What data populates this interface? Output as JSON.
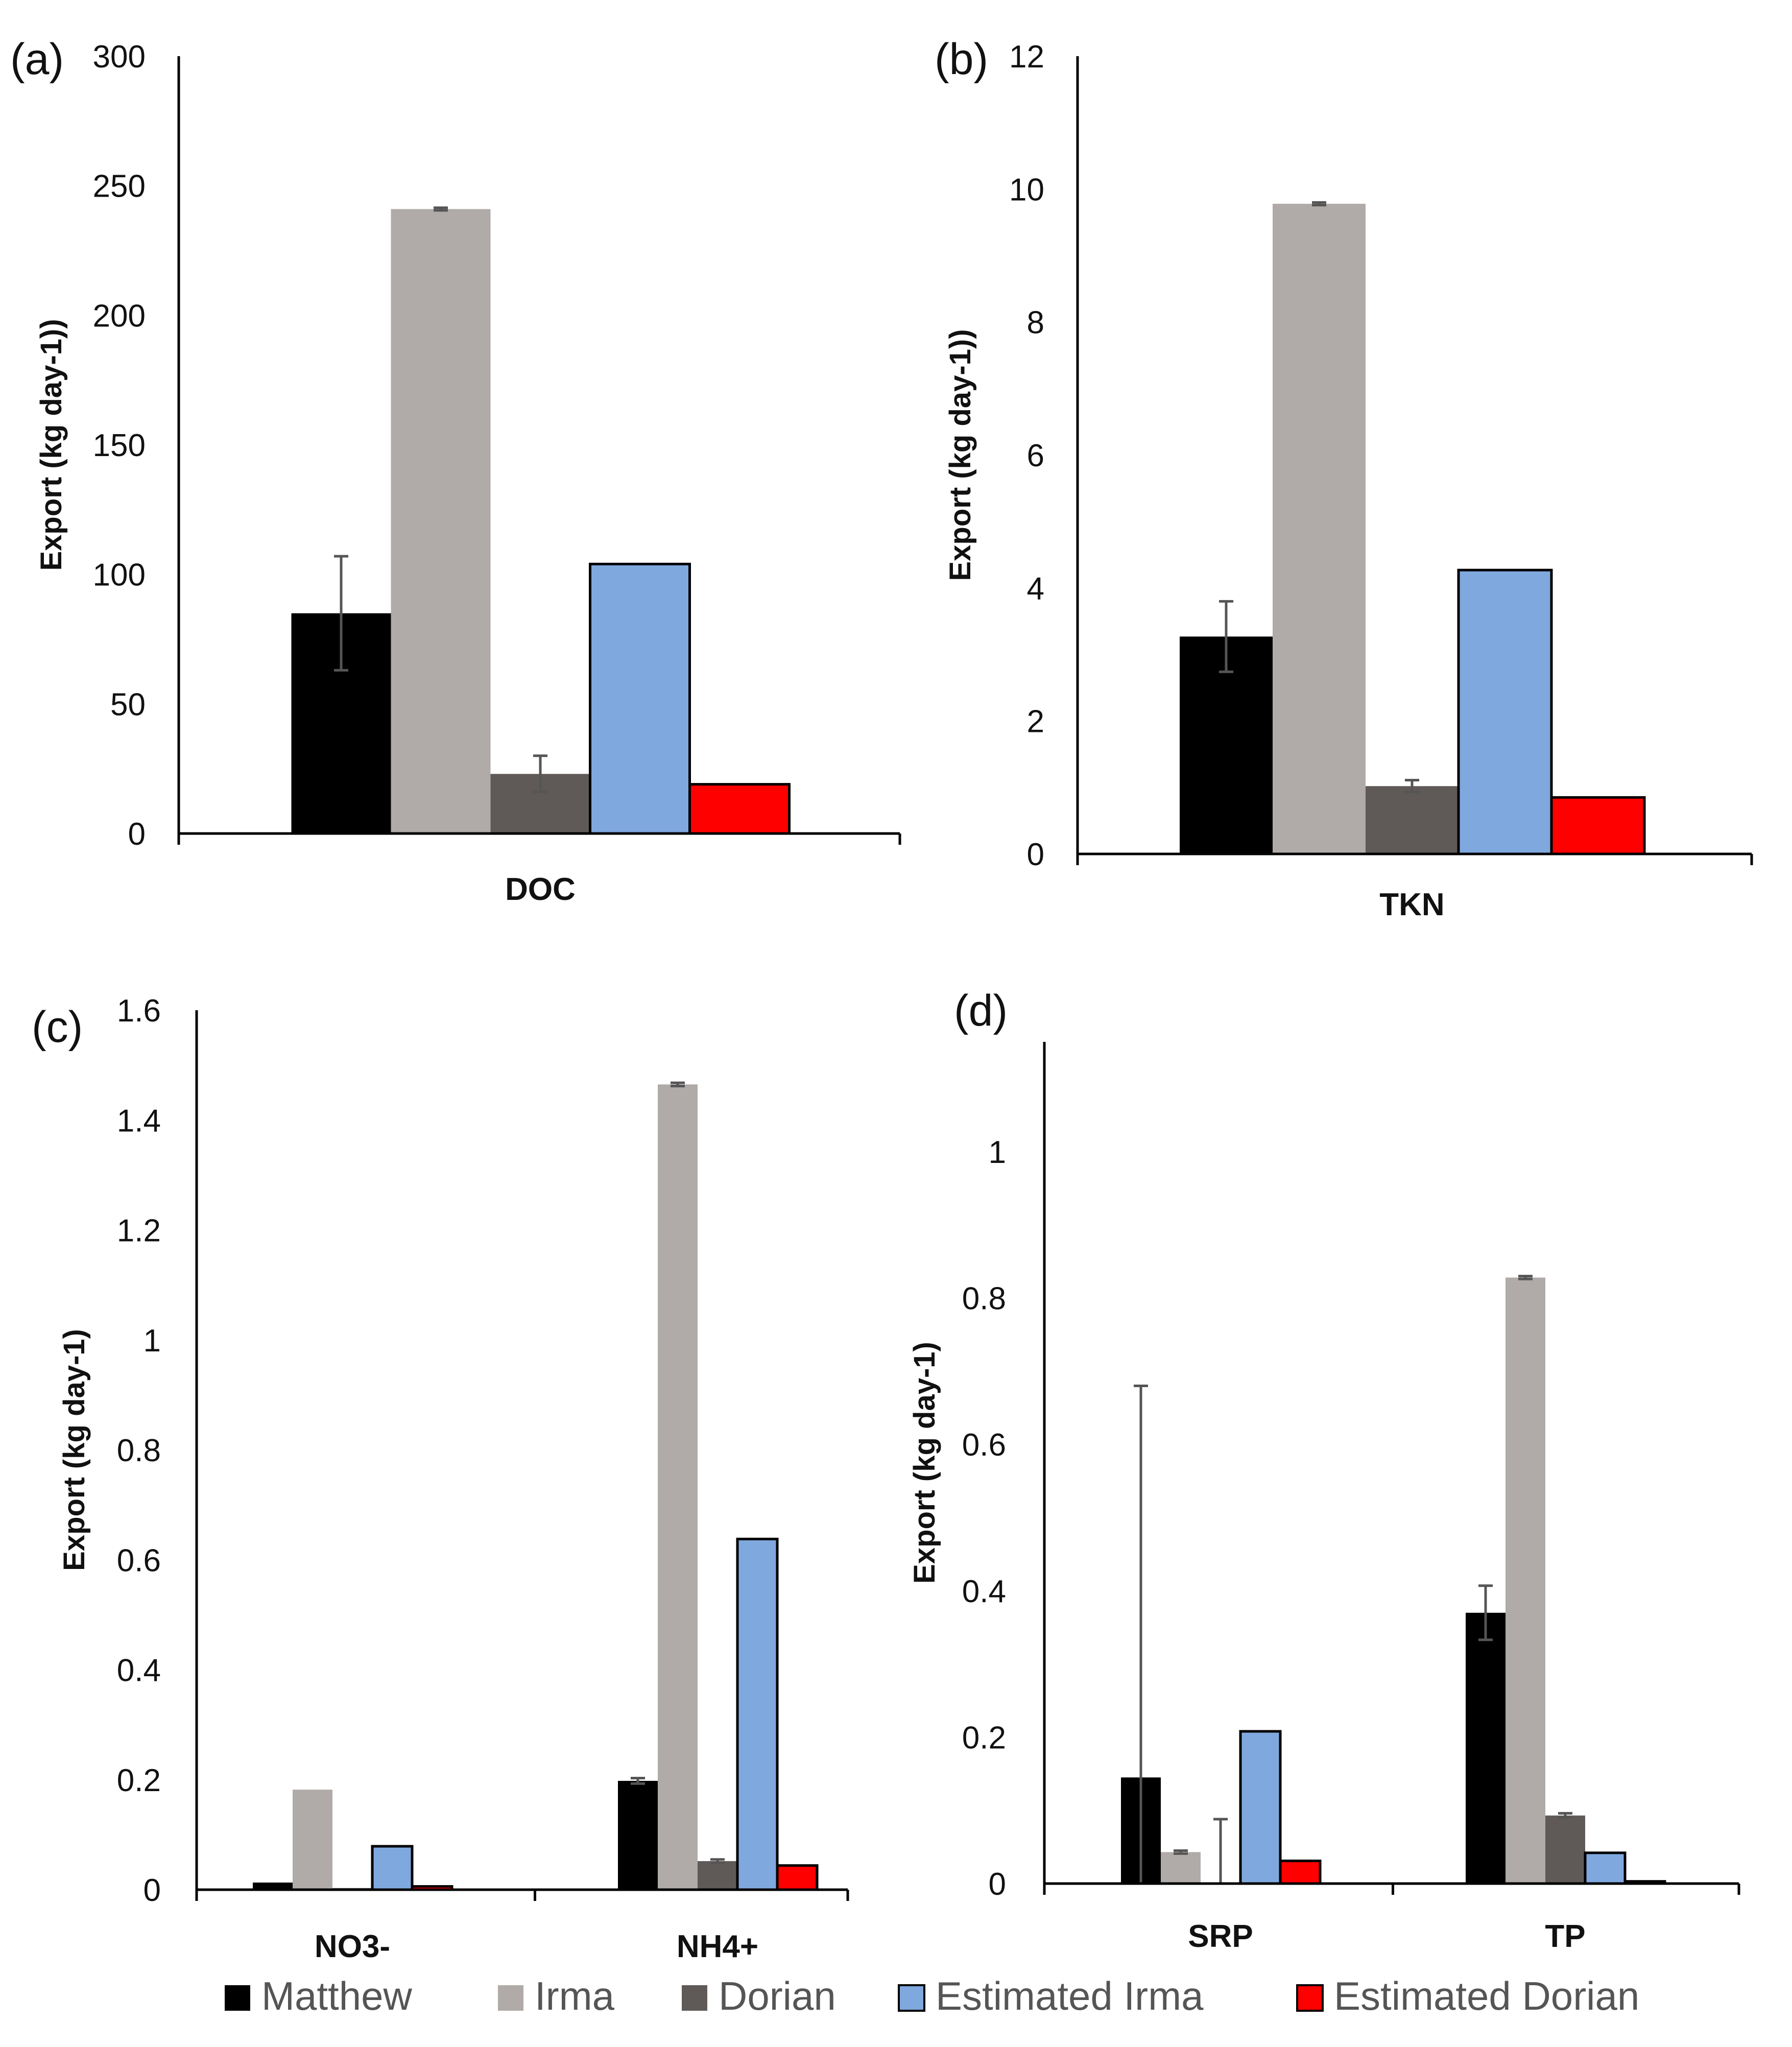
{
  "legend": [
    {
      "name": "Matthew",
      "color": "#000000"
    },
    {
      "name": "Irma",
      "color": "#b0aba8"
    },
    {
      "name": "Dorian",
      "color": "#5f5a58"
    },
    {
      "name": "Estimated Irma",
      "color": "#7fa8de"
    },
    {
      "name": "Estimated Dorian",
      "color": "#ff0000"
    }
  ],
  "chart_data": [
    {
      "panel": "(a)",
      "type": "bar",
      "ylabel": "Export (kg day-1))",
      "ylim": [
        0,
        300
      ],
      "yticks": [
        "0",
        "50",
        "100",
        "150",
        "200",
        "250",
        "300"
      ],
      "yticks_values": [
        0,
        50,
        100,
        150,
        200,
        250,
        300
      ],
      "categories": [
        "DOC"
      ],
      "series": [
        {
          "name": "Matthew",
          "values": [
            85
          ],
          "errors": [
            22
          ]
        },
        {
          "name": "Irma",
          "values": [
            241
          ],
          "errors": [
            0.5
          ]
        },
        {
          "name": "Dorian",
          "values": [
            23
          ],
          "errors": [
            7
          ]
        },
        {
          "name": "Estimated Irma",
          "values": [
            104
          ],
          "errors": [
            null
          ]
        },
        {
          "name": "Estimated Dorian",
          "values": [
            19
          ],
          "errors": [
            null
          ]
        }
      ]
    },
    {
      "panel": "(b)",
      "type": "bar",
      "ylabel": "Export (kg day-1))",
      "ylim": [
        0,
        12
      ],
      "yticks": [
        "0",
        "2",
        "4",
        "6",
        "8",
        "10",
        "12"
      ],
      "yticks_values": [
        0,
        2,
        4,
        6,
        8,
        10,
        12
      ],
      "categories": [
        "TKN"
      ],
      "series": [
        {
          "name": "Matthew",
          "values": [
            3.27
          ],
          "errors": [
            0.53
          ]
        },
        {
          "name": "Irma",
          "values": [
            9.78
          ],
          "errors": [
            0.02
          ]
        },
        {
          "name": "Dorian",
          "values": [
            1.02
          ],
          "errors": [
            0.09
          ]
        },
        {
          "name": "Estimated Irma",
          "values": [
            4.27
          ],
          "errors": [
            null
          ]
        },
        {
          "name": "Estimated Dorian",
          "values": [
            0.85
          ],
          "errors": [
            null
          ]
        }
      ]
    },
    {
      "panel": "(c)",
      "type": "bar",
      "ylabel": "Export (kg day-1)",
      "ylim": [
        0,
        1.6
      ],
      "yticks": [
        "0",
        "0.2",
        "0.4",
        "0.6",
        "0.8",
        "1",
        "1.2",
        "1.4",
        "1.6"
      ],
      "yticks_values": [
        0,
        0.2,
        0.4,
        0.6,
        0.8,
        1,
        1.2,
        1.4,
        1.6
      ],
      "categories": [
        "NO3-",
        "NH4+"
      ],
      "series": [
        {
          "name": "Matthew",
          "values": [
            0.013,
            0.198
          ],
          "errors": [
            null,
            0.005
          ]
        },
        {
          "name": "Irma",
          "values": [
            0.182,
            1.465
          ],
          "errors": [
            null,
            0.003
          ]
        },
        {
          "name": "Dorian",
          "values": [
            0.003,
            0.052
          ],
          "errors": [
            null,
            0.003
          ]
        },
        {
          "name": "Estimated Irma",
          "values": [
            0.079,
            0.638
          ],
          "errors": [
            null,
            null
          ]
        },
        {
          "name": "Estimated Dorian",
          "values": [
            0.006,
            0.044
          ],
          "errors": [
            null,
            null
          ]
        }
      ]
    },
    {
      "panel": "(d)",
      "type": "bar",
      "ylabel": "Export (kg day-1)",
      "ylim": [
        0,
        1.15
      ],
      "yticks": [
        "0",
        "0.2",
        "0.4",
        "0.6",
        "0.8",
        "1"
      ],
      "yticks_values": [
        0,
        0.2,
        0.4,
        0.6,
        0.8,
        1
      ],
      "categories": [
        "SRP",
        "TP"
      ],
      "series": [
        {
          "name": "Matthew",
          "values": [
            0.145,
            0.37
          ],
          "errors": [
            0.535,
            0.037
          ]
        },
        {
          "name": "Irma",
          "values": [
            0.043,
            0.828
          ],
          "errors": [
            0.002,
            0.002
          ]
        },
        {
          "name": "Dorian",
          "values": [
            0,
            0.093
          ],
          "errors": [
            0.088,
            0.003
          ]
        },
        {
          "name": "Estimated Irma",
          "values": [
            0.208,
            0.042
          ],
          "errors": [
            null,
            null
          ]
        },
        {
          "name": "Estimated Dorian",
          "values": [
            0.031,
            0.003
          ],
          "errors": [
            null,
            null
          ]
        }
      ]
    }
  ]
}
